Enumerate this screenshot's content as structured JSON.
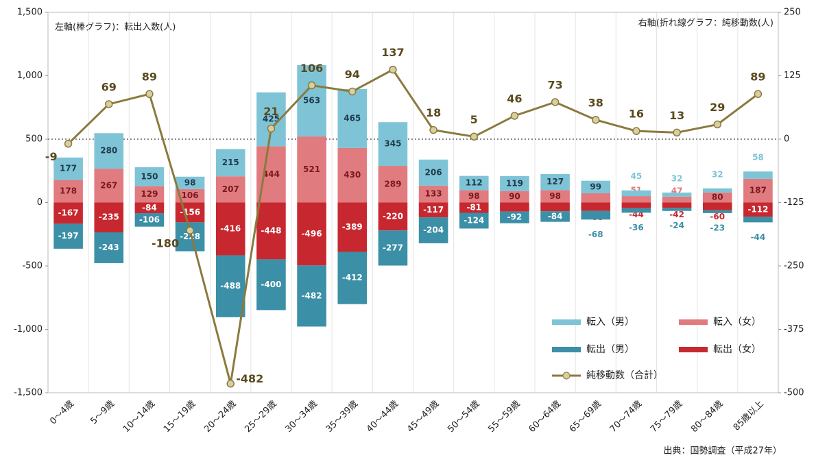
{
  "chart_data": {
    "type": "bar",
    "annotations": {
      "left_axis": "左軸(棒グラフ)：転出入数(人)",
      "right_axis": "右軸(折れ線グラフ：純移動数(人)",
      "source": "出典：国勢調査（平成27年）"
    },
    "categories": [
      "0～4歳",
      "5～9歳",
      "10～14歳",
      "15～19歳",
      "20～24歳",
      "25～29歳",
      "30～34歳",
      "35～39歳",
      "40～44歳",
      "45～49歳",
      "50～54歳",
      "55～59歳",
      "60～64歳",
      "65～69歳",
      "70～74歳",
      "75～79歳",
      "80～84歳",
      "85歳以上"
    ],
    "series": [
      {
        "name": "転入（女）",
        "color": "#e07b7f",
        "values": [
          178,
          267,
          129,
          106,
          207,
          444,
          521,
          430,
          289,
          133,
          98,
          90,
          98,
          73,
          51,
          47,
          80,
          187
        ]
      },
      {
        "name": "転入（男）",
        "color": "#7fc4d6",
        "values": [
          177,
          280,
          150,
          98,
          215,
          425,
          563,
          465,
          345,
          206,
          112,
          119,
          127,
          99,
          45,
          32,
          32,
          58
        ]
      },
      {
        "name": "転出（女）",
        "color": "#c7282f",
        "values": [
          -167,
          -235,
          -84,
          -156,
          -416,
          -448,
          -496,
          -389,
          -220,
          -117,
          -81,
          -71,
          -68,
          -66,
          -44,
          -42,
          -60,
          -112
        ]
      },
      {
        "name": "転出（男）",
        "color": "#3b8fa6",
        "values": [
          -197,
          -243,
          -106,
          -228,
          -488,
          -400,
          -482,
          -412,
          -277,
          -204,
          -124,
          -92,
          -84,
          -68,
          -36,
          -24,
          -23,
          -44
        ]
      },
      {
        "name": "純移動数（合計）",
        "type": "line",
        "axis": "y2",
        "color": "#8b7a3e",
        "values": [
          -9,
          69,
          89,
          -180,
          -482,
          21,
          106,
          94,
          137,
          18,
          5,
          46,
          73,
          38,
          16,
          13,
          29,
          89
        ]
      }
    ],
    "ylim": [
      -1500,
      1500
    ],
    "yticks": [
      {
        "value": -1500,
        "label": "-1,500"
      },
      {
        "value": -1000,
        "label": "-1,000"
      },
      -500,
      0,
      500,
      {
        "value": 1000,
        "label": "1,000"
      },
      {
        "value": 1500,
        "label": "1,500"
      }
    ],
    "y2lim": [
      -500,
      250
    ],
    "y2ticks": [
      -500,
      -375,
      -250,
      -125,
      0,
      125,
      250
    ],
    "legend": "lower right"
  }
}
